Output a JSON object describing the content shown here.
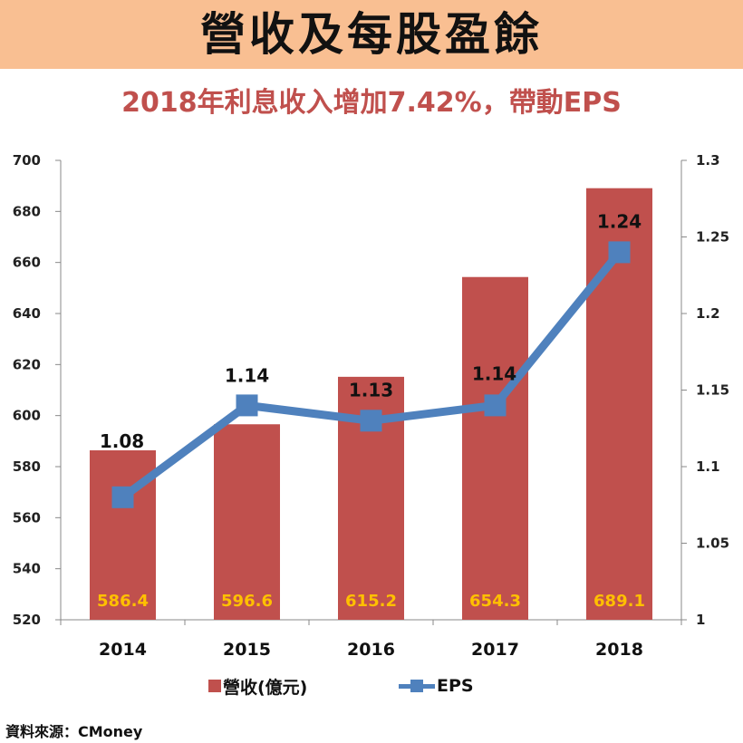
{
  "banner": {
    "title": "營收及每股盈餘"
  },
  "subtitle": "2018年利息收入增加7.42%，帶動EPS",
  "source": "資料來源：CMoney",
  "colors": {
    "banner_bg": "#f9bf92",
    "subtitle": "#c0504d",
    "bar": "#c0504d",
    "line": "#4f81bd",
    "bar_label": "#ffc000"
  },
  "chart_data": {
    "type": "bar+line",
    "categories": [
      "2014",
      "2015",
      "2016",
      "2017",
      "2018"
    ],
    "series": [
      {
        "name": "營收(億元)",
        "type": "bar",
        "axis": "left",
        "values": [
          586.4,
          596.6,
          615.2,
          654.3,
          689.1
        ],
        "labels": [
          "586.4",
          "596.6",
          "615.2",
          "654.3",
          "689.1"
        ]
      },
      {
        "name": "EPS",
        "type": "line",
        "axis": "right",
        "values": [
          1.08,
          1.14,
          1.13,
          1.14,
          1.24
        ],
        "labels": [
          "1.08",
          "1.14",
          "1.13",
          "1.14",
          "1.24"
        ]
      }
    ],
    "y_left": {
      "min": 520,
      "max": 700,
      "ticks": [
        "520",
        "540",
        "560",
        "580",
        "600",
        "620",
        "640",
        "660",
        "680",
        "700"
      ]
    },
    "y_right": {
      "min": 1.0,
      "max": 1.3,
      "ticks": [
        "1",
        "1.05",
        "1.1",
        "1.15",
        "1.2",
        "1.25",
        "1.3"
      ]
    },
    "grid": false,
    "legend_position": "bottom"
  }
}
